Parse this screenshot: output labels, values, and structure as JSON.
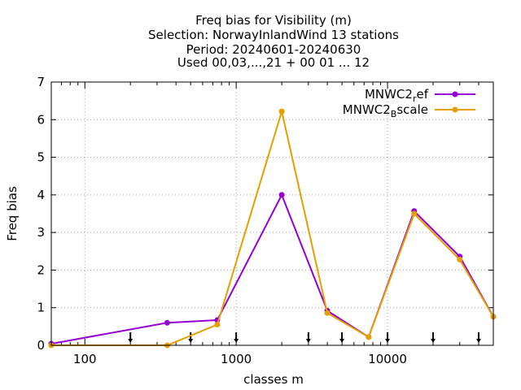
{
  "chart_data": {
    "type": "line",
    "title_lines": [
      "Freq bias  for Visibility (m)",
      "Selection: NorwayInlandWind     13 stations",
      "Period: 20240601-20240630",
      "Used 00,03,...,21 + 00 01 ... 12"
    ],
    "xlabel": "classes m",
    "ylabel": "Freq bias",
    "x_scale": "log",
    "xlim": [
      60,
      50000
    ],
    "ylim": [
      0,
      7
    ],
    "x_ticks": [
      100,
      1000,
      10000
    ],
    "x_tick_labels": [
      "100",
      "1000",
      "10000"
    ],
    "y_ticks": [
      0,
      1,
      2,
      3,
      4,
      5,
      6,
      7
    ],
    "y_tick_labels": [
      "0",
      "1",
      "2",
      "3",
      "4",
      "5",
      "6",
      "7"
    ],
    "grid": true,
    "legend_position": "top-right",
    "observation_marker_x": [
      200,
      500,
      1000,
      3000,
      5000,
      10000,
      20000,
      40000
    ],
    "series": [
      {
        "legend_base": "MNWC2",
        "legend_sub": "r",
        "legend_rest": "ef",
        "color": "#9400d3",
        "x": [
          60,
          350,
          750,
          2000,
          4000,
          7500,
          15000,
          30000,
          50000
        ],
        "y": [
          0.04,
          0.6,
          0.67,
          4.0,
          0.92,
          0.22,
          3.57,
          2.36,
          0.76
        ]
      },
      {
        "legend_base": "MNWC2",
        "legend_sub": "B",
        "legend_rest": "scale",
        "color": "#e69f00",
        "x": [
          60,
          350,
          750,
          2000,
          4000,
          7500,
          15000,
          30000,
          50000
        ],
        "y": [
          0.0,
          0.0,
          0.55,
          6.22,
          0.86,
          0.22,
          3.5,
          2.28,
          0.76
        ]
      }
    ]
  }
}
